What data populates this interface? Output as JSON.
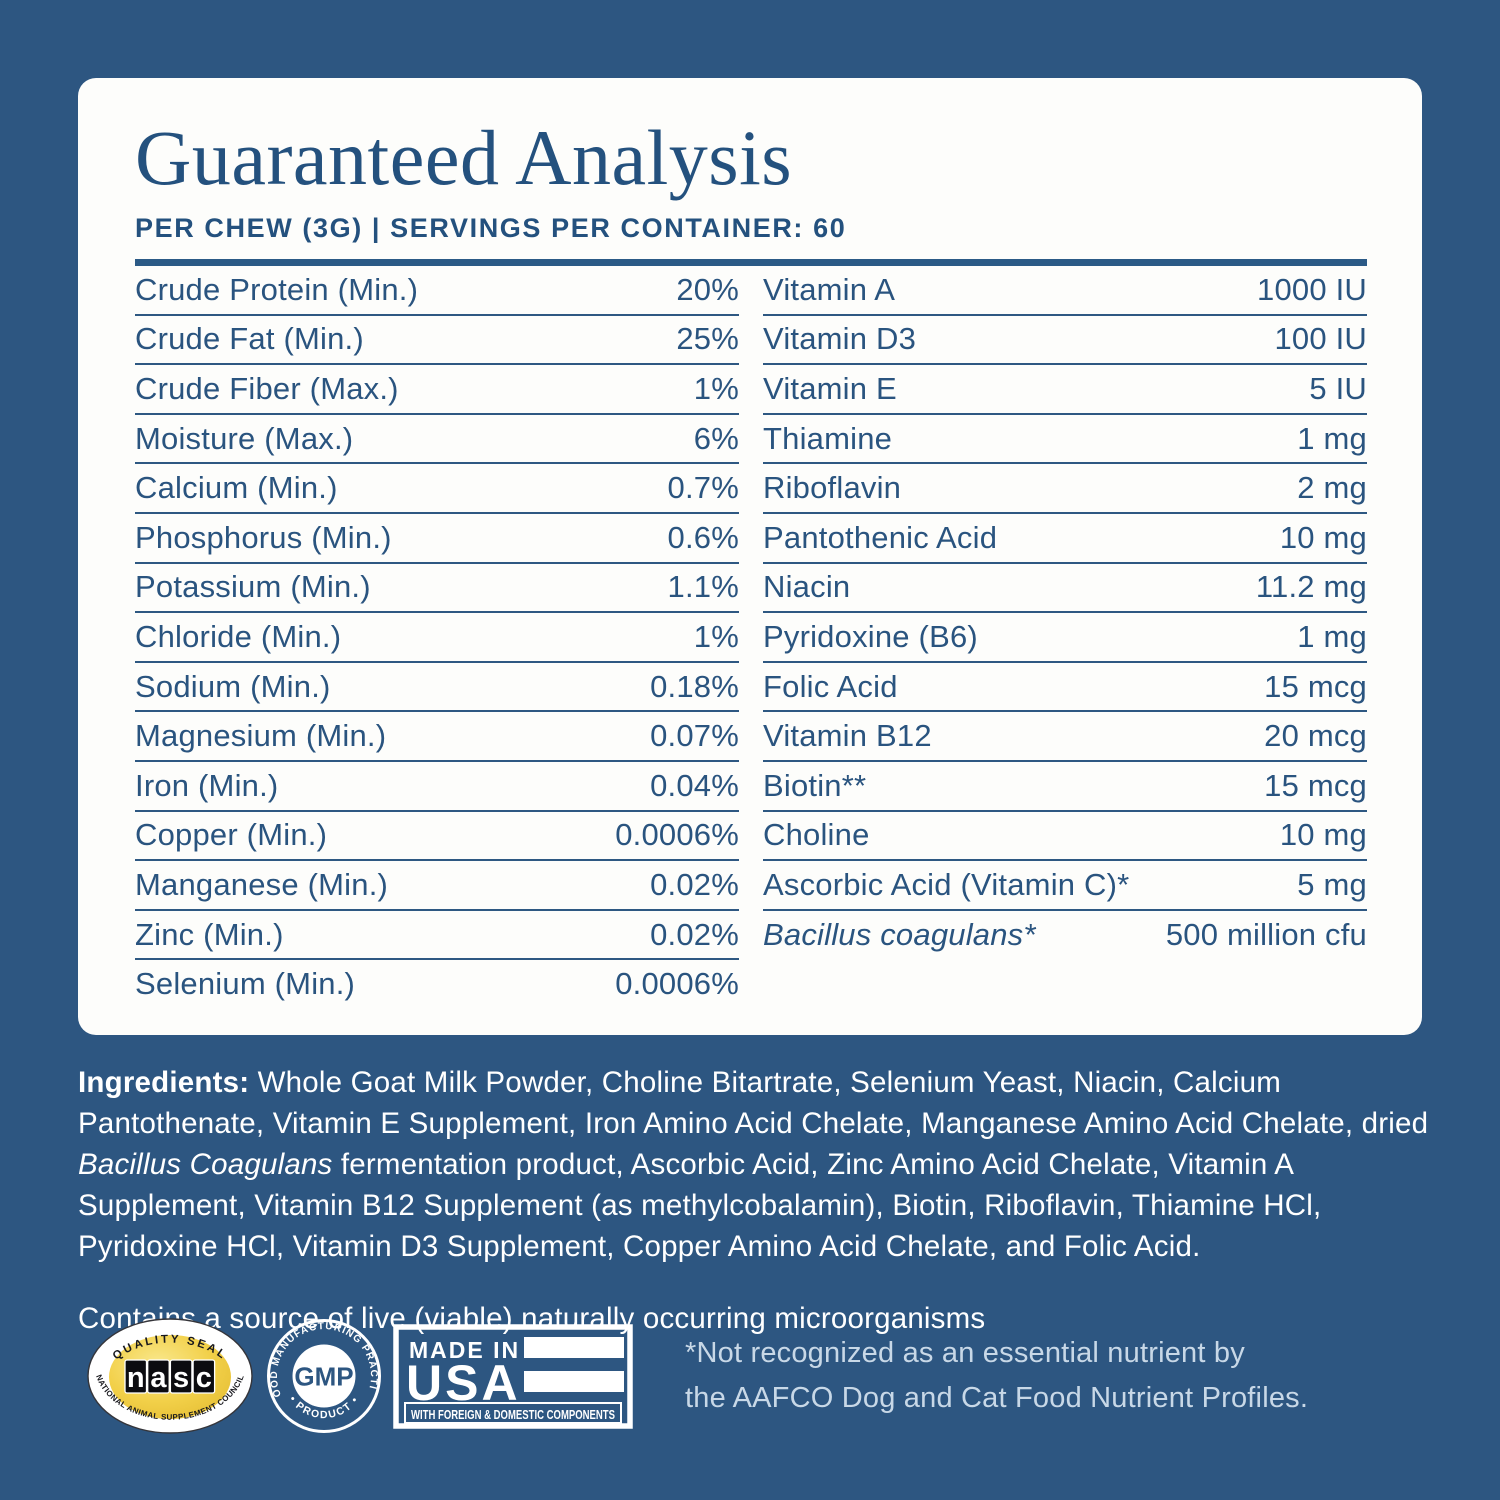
{
  "colors": {
    "background": "#2d5681",
    "card": "#fdfdfb",
    "navy_text": "#28527f",
    "header_rule": "#2b5a86",
    "row_line": "#2e5882",
    "ingredients_text": "#ffffff",
    "footnote_text": "#c8d8e7",
    "nasc_gold": "#f2d049"
  },
  "card": {
    "title": "Guaranteed Analysis",
    "subtitle": "PER CHEW (3G) | SERVINGS PER CONTAINER: 60"
  },
  "analysis": {
    "left_column": [
      {
        "label": "Crude Protein (Min.)",
        "value": "20%"
      },
      {
        "label": "Crude Fat (Min.)",
        "value": "25%"
      },
      {
        "label": "Crude Fiber (Max.)",
        "value": "1%"
      },
      {
        "label": "Moisture (Max.)",
        "value": "6%"
      },
      {
        "label": "Calcium (Min.)",
        "value": "0.7%"
      },
      {
        "label": "Phosphorus (Min.)",
        "value": "0.6%"
      },
      {
        "label": "Potassium (Min.)",
        "value": "1.1%"
      },
      {
        "label": "Chloride (Min.)",
        "value": "1%"
      },
      {
        "label": "Sodium (Min.)",
        "value": "0.18%"
      },
      {
        "label": "Magnesium (Min.)",
        "value": "0.07%"
      },
      {
        "label": "Iron (Min.)",
        "value": "0.04%"
      },
      {
        "label": "Copper (Min.)",
        "value": "0.0006%"
      },
      {
        "label": "Manganese (Min.)",
        "value": "0.02%"
      },
      {
        "label": "Zinc (Min.)",
        "value": "0.02%"
      },
      {
        "label": "Selenium (Min.)",
        "value": "0.0006%"
      }
    ],
    "right_column": [
      {
        "label": "Vitamin A",
        "value": "1000 IU"
      },
      {
        "label": "Vitamin D3",
        "value": "100 IU"
      },
      {
        "label": "Vitamin E",
        "value": "5 IU"
      },
      {
        "label": "Thiamine",
        "value": "1 mg"
      },
      {
        "label": "Riboflavin",
        "value": "2 mg"
      },
      {
        "label": "Pantothenic Acid",
        "value": "10 mg"
      },
      {
        "label": "Niacin",
        "value": "11.2 mg"
      },
      {
        "label": "Pyridoxine (B6)",
        "value": "1 mg"
      },
      {
        "label": "Folic Acid",
        "value": "15 mcg"
      },
      {
        "label": "Vitamin B12",
        "value": "20 mcg"
      },
      {
        "label": "Biotin**",
        "value": "15 mcg"
      },
      {
        "label": "Choline",
        "value": "10 mg"
      },
      {
        "label": "Ascorbic Acid (Vitamin C)*",
        "value": "5 mg"
      },
      {
        "label": "Bacillus coagulans*",
        "value": "500 million cfu",
        "italic": true
      }
    ]
  },
  "ingredients": {
    "segments": [
      {
        "text": "Ingredients: ",
        "bold": true
      },
      {
        "text": "Whole Goat Milk Powder, Choline Bitartrate, Selenium Yeast, Niacin, Calcium Pantothenate, Vitamin E Supplement, Iron Amino Acid Chelate, Manganese Amino Acid Chelate, dried "
      },
      {
        "text": "Bacillus Coagulans",
        "italic": true
      },
      {
        "text": " fermentation product, Ascorbic Acid, Zinc Amino Acid Chelate, Vitamin A Supplement, Vitamin B12 Supplement (as methylcobalamin), Biotin, Riboflavin, Thiamine HCl, Pyridoxine HCl, Vitamin D3 Supplement, Copper Amino Acid Chelate, and Folic Acid."
      }
    ]
  },
  "contains_statement": "Contains a source of live (viable) naturally occurring microorganisms",
  "seals": {
    "nasc": {
      "arc_top": "QUALITY SEAL",
      "letters": [
        "n",
        "a",
        "s",
        "c"
      ],
      "arc_bottom": "NATIONAL ANIMAL SUPPLEMENT COUNCIL"
    },
    "gmp": {
      "arc_top": "GOOD MANUFACTURING PRACTICE",
      "arc_bottom": "• PRODUCT •",
      "center": "GMP"
    },
    "usa": {
      "line1": "MADE IN",
      "line2": "USA",
      "strip": "WITH FOREIGN & DOMESTIC COMPONENTS"
    }
  },
  "footnote": {
    "line1": "*Not recognized as an essential nutrient by",
    "line2": "the AAFCO Dog and Cat Food Nutrient Profiles."
  }
}
